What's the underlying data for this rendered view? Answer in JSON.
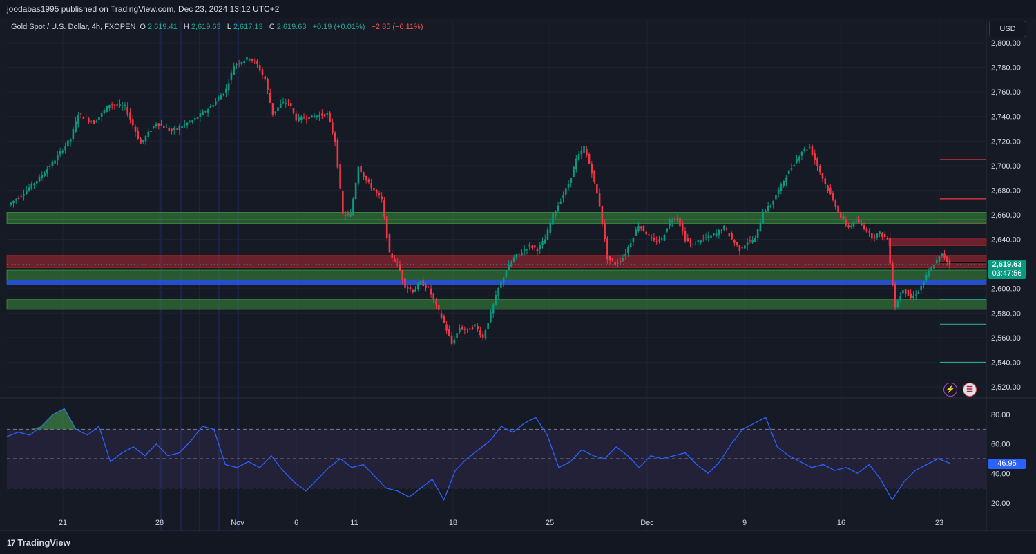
{
  "header": {
    "publisher": "joodabas1995 published on TradingView.com, Dec 23, 2024 13:12 UTC+2",
    "currency": "USD",
    "footer_logo": "TradingView",
    "logo_mark": "17"
  },
  "legend": {
    "symbol": "Gold Spot / U.S. Dollar, 4h, FXOPEN",
    "o_label": "O",
    "o": "2,619.41",
    "h_label": "H",
    "h": "2,619.63",
    "l_label": "L",
    "l": "2,617.13",
    "c_label": "C",
    "c": "2,619.63",
    "change": "+0.19 (+0.01%)",
    "change2": "−2.85 (−0.11%)"
  },
  "last_price": {
    "value": "2,619.63",
    "countdown": "03:47:56"
  },
  "rsi_last": "46.95",
  "colors": {
    "up": "#089981",
    "down": "#f23645",
    "rsi": "#2962ff",
    "bg": "#161a25"
  },
  "icons": [
    "lightning-icon",
    "us-flag-icon"
  ],
  "chart_data": [
    {
      "type": "candlestick",
      "title": "Gold Spot / U.S. Dollar, 4h, FXOPEN",
      "x_tick_labels": [
        "21",
        "28",
        "Nov",
        "6",
        "11",
        "18",
        "25",
        "Dec",
        "9",
        "16",
        "23"
      ],
      "y_tick_labels": [
        "2,800.00",
        "2,780.00",
        "2,760.00",
        "2,740.00",
        "2,720.00",
        "2,700.00",
        "2,680.00",
        "2,660.00",
        "2,640.00",
        "2,620.00",
        "2,600.00",
        "2,580.00",
        "2,560.00",
        "2,540.00",
        "2,520.00"
      ],
      "ylim": [
        2515,
        2808
      ],
      "close_path": [
        [
          0,
          2668
        ],
        [
          2,
          2678
        ],
        [
          4,
          2690
        ],
        [
          6,
          2705
        ],
        [
          8,
          2722
        ],
        [
          9,
          2742
        ],
        [
          11,
          2735
        ],
        [
          13,
          2750
        ],
        [
          15,
          2748
        ],
        [
          17,
          2718
        ],
        [
          19,
          2735
        ],
        [
          21,
          2728
        ],
        [
          24,
          2738
        ],
        [
          26,
          2748
        ],
        [
          28,
          2762
        ],
        [
          29,
          2782
        ],
        [
          31,
          2788
        ],
        [
          32,
          2782
        ],
        [
          33,
          2770
        ],
        [
          34,
          2742
        ],
        [
          35,
          2750
        ],
        [
          36,
          2752
        ],
        [
          37,
          2738
        ],
        [
          39,
          2740
        ],
        [
          41,
          2742
        ],
        [
          42,
          2720
        ],
        [
          43,
          2660
        ],
        [
          44,
          2660
        ],
        [
          45,
          2700
        ],
        [
          46,
          2688
        ],
        [
          47,
          2680
        ],
        [
          48,
          2672
        ],
        [
          49,
          2628
        ],
        [
          50,
          2620
        ],
        [
          51,
          2602
        ],
        [
          52,
          2598
        ],
        [
          53,
          2605
        ],
        [
          54,
          2600
        ],
        [
          56,
          2572
        ],
        [
          57,
          2555
        ],
        [
          58,
          2568
        ],
        [
          59,
          2566
        ],
        [
          60,
          2570
        ],
        [
          61,
          2560
        ],
        [
          62,
          2580
        ],
        [
          63,
          2600
        ],
        [
          64,
          2615
        ],
        [
          65,
          2625
        ],
        [
          66,
          2630
        ],
        [
          67,
          2635
        ],
        [
          68,
          2632
        ],
        [
          69,
          2640
        ],
        [
          70,
          2660
        ],
        [
          71,
          2672
        ],
        [
          72,
          2685
        ],
        [
          73,
          2705
        ],
        [
          74,
          2715
        ],
        [
          75,
          2695
        ],
        [
          76,
          2668
        ],
        [
          77,
          2625
        ],
        [
          78,
          2620
        ],
        [
          79,
          2625
        ],
        [
          80,
          2638
        ],
        [
          81,
          2652
        ],
        [
          82,
          2645
        ],
        [
          83,
          2638
        ],
        [
          84,
          2640
        ],
        [
          85,
          2655
        ],
        [
          86,
          2658
        ],
        [
          87,
          2640
        ],
        [
          88,
          2635
        ],
        [
          89,
          2640
        ],
        [
          90,
          2642
        ],
        [
          91,
          2645
        ],
        [
          92,
          2650
        ],
        [
          93,
          2640
        ],
        [
          94,
          2632
        ],
        [
          95,
          2638
        ],
        [
          96,
          2640
        ],
        [
          97,
          2662
        ],
        [
          98,
          2668
        ],
        [
          99,
          2680
        ],
        [
          100,
          2692
        ],
        [
          101,
          2702
        ],
        [
          102,
          2712
        ],
        [
          103,
          2715
        ],
        [
          104,
          2700
        ],
        [
          105,
          2685
        ],
        [
          106,
          2672
        ],
        [
          107,
          2658
        ],
        [
          108,
          2650
        ],
        [
          109,
          2655
        ],
        [
          110,
          2650
        ],
        [
          111,
          2642
        ],
        [
          112,
          2645
        ],
        [
          113,
          2640
        ],
        [
          114,
          2585
        ],
        [
          115,
          2600
        ],
        [
          116,
          2592
        ],
        [
          117,
          2598
        ],
        [
          118,
          2610
        ],
        [
          119,
          2620
        ],
        [
          120,
          2628
        ],
        [
          121,
          2619.63
        ]
      ],
      "horizontal_zones": [
        {
          "low": 2656,
          "high": 2662,
          "color": "green"
        },
        {
          "low": 2653,
          "high": 2656,
          "color": "green"
        },
        {
          "low": 2617,
          "high": 2627,
          "color": "red"
        },
        {
          "low": 2607,
          "high": 2615,
          "color": "green"
        },
        {
          "low": 2603,
          "high": 2607,
          "color": "blue"
        },
        {
          "low": 2583,
          "high": 2591,
          "color": "green"
        },
        {
          "low": 2635,
          "high": 2641,
          "color": "red"
        }
      ],
      "short_lines": [
        {
          "price": 2705,
          "color": "red"
        },
        {
          "price": 2673,
          "color": "red"
        },
        {
          "price": 2654,
          "color": "red"
        },
        {
          "price": 2621,
          "color": "black"
        },
        {
          "price": 2591,
          "color": "green"
        },
        {
          "price": 2571,
          "color": "green"
        },
        {
          "price": 2540,
          "color": "green"
        }
      ],
      "last": 2619.63
    },
    {
      "type": "line",
      "title": "",
      "y_tick_labels": [
        "80.00",
        "60.00",
        "40.00",
        "20.00"
      ],
      "ylim": [
        14,
        88
      ],
      "bands": [
        70,
        50,
        30
      ],
      "series": [
        {
          "values": [
            65,
            68,
            66,
            72,
            80,
            84,
            70,
            66,
            72,
            48,
            54,
            58,
            52,
            60,
            52,
            54,
            62,
            72,
            70,
            46,
            44,
            48,
            44,
            52,
            42,
            34,
            28,
            36,
            44,
            50,
            44,
            46,
            38,
            30,
            28,
            24,
            30,
            36,
            22,
            42,
            50,
            56,
            62,
            72,
            68,
            74,
            78,
            66,
            44,
            48,
            56,
            52,
            50,
            58,
            52,
            44,
            52,
            50,
            52,
            54,
            46,
            40,
            48,
            60,
            70,
            74,
            78,
            58,
            52,
            48,
            44,
            46,
            42,
            44,
            40,
            46,
            36,
            22,
            34,
            42,
            46,
            50,
            46.95
          ]
        }
      ]
    }
  ]
}
